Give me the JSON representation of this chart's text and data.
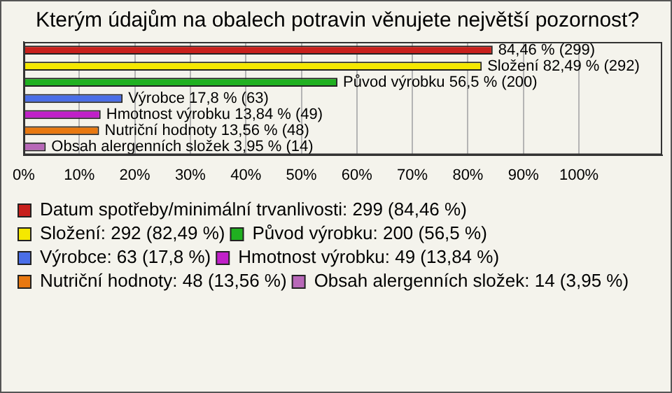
{
  "chart_data": {
    "type": "bar",
    "orientation": "horizontal",
    "title": "Kterým údajům na obalech potravin věnujete největší pozornost?",
    "categories": [
      null,
      null,
      null,
      null,
      null,
      null,
      null
    ],
    "series": [
      {
        "name": "Datum spotřeby/minimální trvanlivosti: 299 (84,46 %)",
        "color": "#c8201c",
        "values": [
          84.46,
          null,
          null,
          null,
          null,
          null,
          null
        ],
        "value_labels": [
          "84,46 % (299)",
          null,
          null,
          null,
          null,
          null,
          null
        ]
      },
      {
        "name": "Složení: 292 (82,49 %)",
        "color": "#f5e800",
        "values": [
          null,
          82.49,
          null,
          null,
          null,
          null,
          null
        ],
        "value_labels": [
          null,
          "Složení 82,49 % (292)",
          null,
          null,
          null,
          null,
          null
        ]
      },
      {
        "name": "Původ výrobku: 200 (56,5 %)",
        "color": "#20b020",
        "values": [
          null,
          null,
          56.5,
          null,
          null,
          null,
          null
        ],
        "value_labels": [
          null,
          null,
          "Původ výrobku 56,5 % (200)",
          null,
          null,
          null,
          null
        ]
      },
      {
        "name": "Výrobce: 63 (17,8 %)",
        "color": "#4a6ee8",
        "values": [
          null,
          null,
          null,
          17.8,
          null,
          null,
          null
        ],
        "value_labels": [
          null,
          null,
          null,
          "Výrobce 17,8 % (63)",
          null,
          null,
          null
        ]
      },
      {
        "name": "Hmotnost výrobku: 49 (13,84 %)",
        "color": "#c020c8",
        "values": [
          null,
          null,
          null,
          null,
          13.84,
          null,
          null
        ],
        "value_labels": [
          null,
          null,
          null,
          null,
          "Hmotnost výrobku 13,84 % (49)",
          null,
          null
        ]
      },
      {
        "name": "Nutriční hodnoty: 48 (13,56 %)",
        "color": "#e87810",
        "values": [
          null,
          null,
          null,
          null,
          null,
          13.56,
          null
        ],
        "value_labels": [
          null,
          null,
          null,
          null,
          null,
          "Nutriční hodnoty 13,56 % (48)",
          null
        ]
      },
      {
        "name": "Obsah alergenních složek: 14 (3,95 %)",
        "color": "#b868b8",
        "values": [
          null,
          null,
          null,
          null,
          null,
          null,
          3.95
        ],
        "value_labels": [
          null,
          null,
          null,
          null,
          null,
          null,
          "Obsah alergenních složek 3,95 % (14)"
        ]
      }
    ],
    "xlim": [
      0,
      115
    ],
    "xticks": [
      {
        "value": 0,
        "label": "0%"
      },
      {
        "value": 10,
        "label": "10%"
      },
      {
        "value": 20,
        "label": "20%"
      },
      {
        "value": 30,
        "label": "30%"
      },
      {
        "value": 40,
        "label": "40%"
      },
      {
        "value": 50,
        "label": "50%"
      },
      {
        "value": 60,
        "label": "60%"
      },
      {
        "value": 70,
        "label": "70%"
      },
      {
        "value": 80,
        "label": "80%"
      },
      {
        "value": 90,
        "label": "90%"
      },
      {
        "value": 100,
        "label": "100%"
      }
    ],
    "grid": "x",
    "legend": "bottom",
    "tick_labels": "x"
  }
}
